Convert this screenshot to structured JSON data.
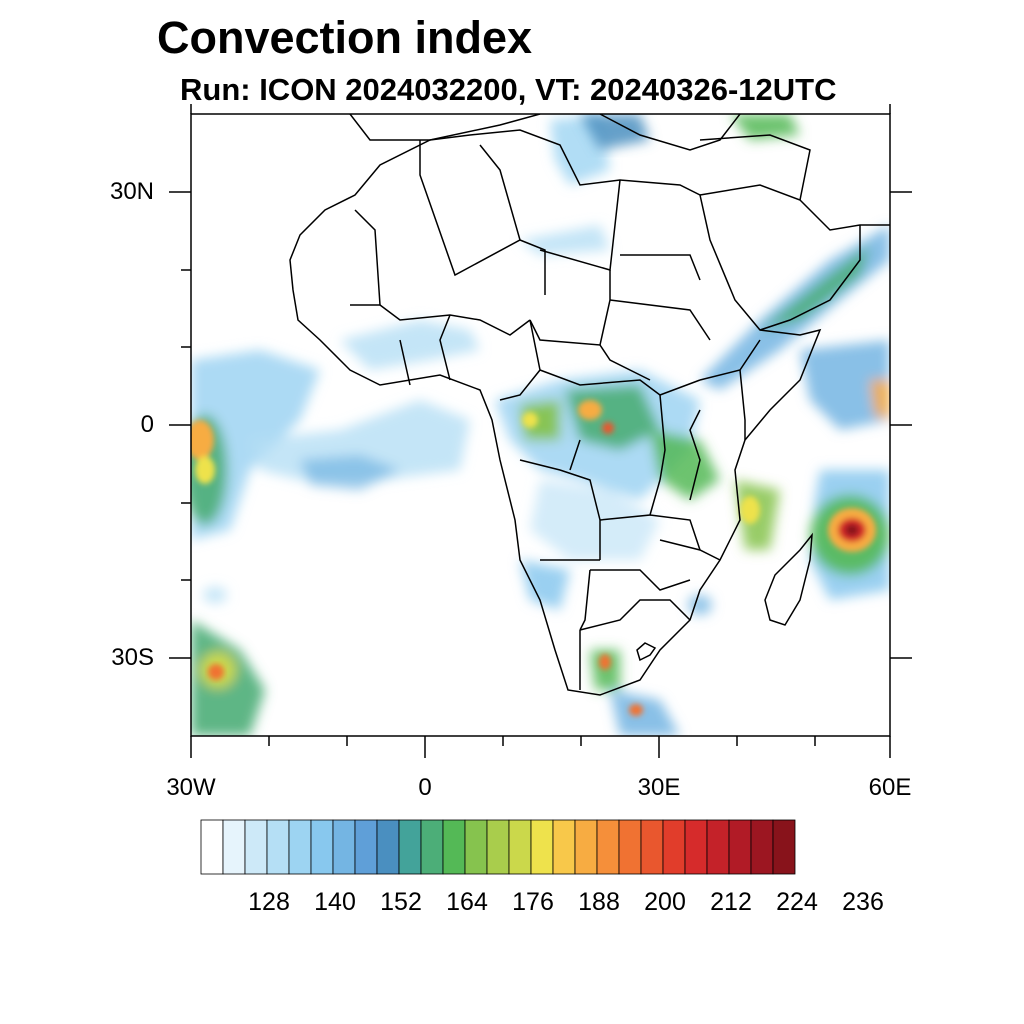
{
  "title": "Convection index",
  "subtitle": "Run: ICON 2024032200,  VT: 20240326-12UTC",
  "map": {
    "lat_labels": [
      "30N",
      "0",
      "30S"
    ],
    "lon_labels": [
      "30W",
      "0",
      "30E",
      "60E"
    ]
  },
  "colorbar": {
    "colors": [
      "#ffffff",
      "#e6f4fc",
      "#cde9f8",
      "#b5dff5",
      "#9dd4f2",
      "#88c8ee",
      "#74b5e3",
      "#5f9fd8",
      "#4a8fc0",
      "#43a39a",
      "#4cae78",
      "#54b956",
      "#86c34e",
      "#a9cd4c",
      "#cbd84b",
      "#eee24c",
      "#f8c84a",
      "#f7ac42",
      "#f58f3a",
      "#f07232",
      "#e9572e",
      "#e13d2b",
      "#d62b2b",
      "#c42229",
      "#b11b26",
      "#9c1621",
      "#88131b"
    ],
    "labels": [
      "128",
      "140",
      "152",
      "164",
      "176",
      "188",
      "200",
      "212",
      "224",
      "236"
    ]
  }
}
